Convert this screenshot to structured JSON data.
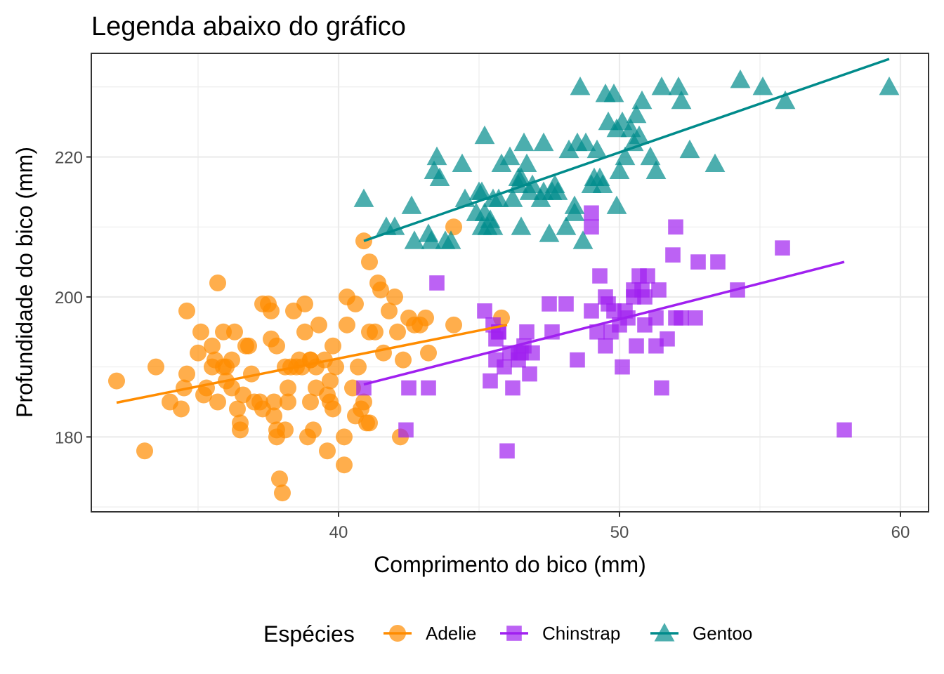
{
  "chart_data": {
    "type": "scatter",
    "title": "Legenda abaixo do gráfico",
    "xlabel": "Comprimento do bico (mm)",
    "ylabel": "Profundidade do bico (mm)",
    "xlim": [
      31.2,
      61.0
    ],
    "ylim": [
      169.3,
      234.8
    ],
    "x_ticks": [
      40,
      50,
      60
    ],
    "y_ticks": [
      180,
      200,
      220
    ],
    "x_minor_ticks": [
      35,
      45,
      55
    ],
    "y_minor_ticks": [
      170,
      190,
      210,
      230
    ],
    "grid": true,
    "legend": {
      "title": "Espécies",
      "position": "bottom"
    },
    "series": [
      {
        "name": "Adelie",
        "color": "#ff8c00",
        "shape": "circle",
        "trend": {
          "x": [
            32.1,
            46.0
          ],
          "y": [
            184.9,
            196.0
          ]
        },
        "points": [
          [
            32.1,
            188
          ],
          [
            33.1,
            178
          ],
          [
            33.5,
            190
          ],
          [
            34.0,
            185
          ],
          [
            34.4,
            184
          ],
          [
            34.5,
            187
          ],
          [
            34.6,
            198
          ],
          [
            34.6,
            189
          ],
          [
            35.0,
            192
          ],
          [
            35.1,
            195
          ],
          [
            35.2,
            186
          ],
          [
            35.3,
            187
          ],
          [
            35.5,
            190
          ],
          [
            35.5,
            193
          ],
          [
            35.6,
            191
          ],
          [
            35.7,
            185
          ],
          [
            35.7,
            202
          ],
          [
            35.9,
            190
          ],
          [
            35.9,
            195
          ],
          [
            36.0,
            188
          ],
          [
            36.0,
            190
          ],
          [
            36.2,
            187
          ],
          [
            36.2,
            191
          ],
          [
            36.3,
            195
          ],
          [
            36.4,
            184
          ],
          [
            36.5,
            182
          ],
          [
            36.5,
            181
          ],
          [
            36.6,
            186
          ],
          [
            36.7,
            193
          ],
          [
            36.8,
            193
          ],
          [
            36.9,
            189
          ],
          [
            37.0,
            185
          ],
          [
            37.2,
            185
          ],
          [
            37.3,
            184
          ],
          [
            37.3,
            199
          ],
          [
            37.5,
            199
          ],
          [
            37.6,
            194
          ],
          [
            37.6,
            198
          ],
          [
            37.7,
            185
          ],
          [
            37.7,
            183
          ],
          [
            37.8,
            180
          ],
          [
            37.8,
            181
          ],
          [
            37.8,
            193
          ],
          [
            37.9,
            174
          ],
          [
            38.0,
            172
          ],
          [
            38.1,
            190
          ],
          [
            38.1,
            181
          ],
          [
            38.2,
            185
          ],
          [
            38.2,
            187
          ],
          [
            38.3,
            190
          ],
          [
            38.4,
            198
          ],
          [
            38.5,
            190
          ],
          [
            38.6,
            191
          ],
          [
            38.7,
            190
          ],
          [
            38.8,
            199
          ],
          [
            38.8,
            195
          ],
          [
            38.9,
            180
          ],
          [
            39.0,
            191
          ],
          [
            39.0,
            185
          ],
          [
            39.1,
            181
          ],
          [
            39.2,
            190
          ],
          [
            39.2,
            187
          ],
          [
            39.3,
            196
          ],
          [
            39.5,
            191
          ],
          [
            39.6,
            178
          ],
          [
            39.6,
            186
          ],
          [
            39.7,
            185
          ],
          [
            39.7,
            188
          ],
          [
            39.8,
            184
          ],
          [
            39.8,
            193
          ],
          [
            39.9,
            190
          ],
          [
            40.2,
            180
          ],
          [
            40.2,
            176
          ],
          [
            40.3,
            200
          ],
          [
            40.3,
            196
          ],
          [
            40.5,
            187
          ],
          [
            40.6,
            183
          ],
          [
            40.6,
            199
          ],
          [
            40.7,
            190
          ],
          [
            40.8,
            184
          ],
          [
            40.9,
            208
          ],
          [
            41.0,
            182
          ],
          [
            41.1,
            182
          ],
          [
            41.1,
            195
          ],
          [
            41.1,
            205
          ],
          [
            41.3,
            195
          ],
          [
            41.4,
            202
          ],
          [
            41.5,
            201
          ],
          [
            41.6,
            192
          ],
          [
            41.8,
            198
          ],
          [
            42.0,
            200
          ],
          [
            42.1,
            195
          ],
          [
            42.2,
            180
          ],
          [
            42.3,
            191
          ],
          [
            42.5,
            197
          ],
          [
            42.7,
            196
          ],
          [
            42.9,
            196
          ],
          [
            43.1,
            197
          ],
          [
            43.2,
            192
          ],
          [
            44.1,
            210
          ],
          [
            44.1,
            196
          ],
          [
            45.8,
            197
          ],
          [
            40.9,
            185
          ],
          [
            39.0,
            191
          ]
        ]
      },
      {
        "name": "Chinstrap",
        "color": "#a020f0",
        "shape": "square",
        "trend": {
          "x": [
            40.9,
            58.0
          ],
          "y": [
            187.5,
            205.0
          ]
        },
        "points": [
          [
            40.9,
            187
          ],
          [
            42.4,
            181
          ],
          [
            42.5,
            187
          ],
          [
            43.2,
            187
          ],
          [
            43.5,
            202
          ],
          [
            45.2,
            198
          ],
          [
            45.4,
            188
          ],
          [
            45.5,
            196
          ],
          [
            45.6,
            191
          ],
          [
            45.6,
            194
          ],
          [
            45.7,
            195
          ],
          [
            45.9,
            190
          ],
          [
            46.0,
            178
          ],
          [
            46.1,
            192
          ],
          [
            46.2,
            187
          ],
          [
            46.4,
            191
          ],
          [
            46.5,
            192
          ],
          [
            46.6,
            193
          ],
          [
            46.7,
            195
          ],
          [
            46.8,
            189
          ],
          [
            46.9,
            192
          ],
          [
            47.5,
            199
          ],
          [
            47.6,
            195
          ],
          [
            48.1,
            199
          ],
          [
            48.5,
            191
          ],
          [
            49.0,
            210
          ],
          [
            49.0,
            212
          ],
          [
            49.2,
            195
          ],
          [
            49.3,
            203
          ],
          [
            49.5,
            193
          ],
          [
            49.6,
            199
          ],
          [
            49.7,
            195
          ],
          [
            49.8,
            198
          ],
          [
            50.0,
            196
          ],
          [
            50.1,
            190
          ],
          [
            50.2,
            198
          ],
          [
            50.3,
            197
          ],
          [
            50.5,
            201
          ],
          [
            50.6,
            193
          ],
          [
            50.7,
            203
          ],
          [
            50.8,
            201
          ],
          [
            50.9,
            196
          ],
          [
            51.0,
            203
          ],
          [
            51.3,
            197
          ],
          [
            51.4,
            201
          ],
          [
            51.5,
            187
          ],
          [
            51.7,
            194
          ],
          [
            51.9,
            206
          ],
          [
            52.0,
            210
          ],
          [
            52.0,
            197
          ],
          [
            52.2,
            197
          ],
          [
            52.7,
            197
          ],
          [
            53.5,
            205
          ],
          [
            52.8,
            205
          ],
          [
            54.2,
            201
          ],
          [
            55.8,
            207
          ],
          [
            58.0,
            181
          ],
          [
            45.7,
            195
          ],
          [
            46.4,
            192
          ],
          [
            49.5,
            200
          ],
          [
            50.9,
            200
          ],
          [
            51.3,
            193
          ],
          [
            50.5,
            200
          ],
          [
            49.0,
            198
          ]
        ]
      },
      {
        "name": "Gentoo",
        "color": "#008b8b",
        "shape": "triangle",
        "trend": {
          "x": [
            40.9,
            59.6
          ],
          "y": [
            208.0,
            234.0
          ]
        },
        "points": [
          [
            40.9,
            214
          ],
          [
            41.7,
            210
          ],
          [
            42.0,
            210
          ],
          [
            42.6,
            213
          ],
          [
            42.7,
            208
          ],
          [
            43.2,
            209
          ],
          [
            43.3,
            208
          ],
          [
            43.4,
            218
          ],
          [
            43.5,
            220
          ],
          [
            43.6,
            217
          ],
          [
            43.8,
            208
          ],
          [
            44.0,
            208
          ],
          [
            44.4,
            219
          ],
          [
            44.5,
            214
          ],
          [
            44.9,
            212
          ],
          [
            45.0,
            215
          ],
          [
            45.1,
            215
          ],
          [
            45.2,
            212
          ],
          [
            45.2,
            223
          ],
          [
            45.3,
            210
          ],
          [
            45.4,
            211
          ],
          [
            45.5,
            210
          ],
          [
            45.5,
            214
          ],
          [
            45.7,
            214
          ],
          [
            45.8,
            219
          ],
          [
            46.1,
            220
          ],
          [
            46.2,
            214
          ],
          [
            46.4,
            216
          ],
          [
            46.5,
            210
          ],
          [
            46.5,
            217
          ],
          [
            46.6,
            222
          ],
          [
            46.7,
            219
          ],
          [
            46.8,
            215
          ],
          [
            46.9,
            216
          ],
          [
            47.2,
            214
          ],
          [
            47.3,
            222
          ],
          [
            47.5,
            209
          ],
          [
            47.6,
            215
          ],
          [
            47.7,
            216
          ],
          [
            47.8,
            215
          ],
          [
            48.1,
            210
          ],
          [
            48.2,
            221
          ],
          [
            48.4,
            213
          ],
          [
            48.5,
            222
          ],
          [
            48.6,
            230
          ],
          [
            48.7,
            208
          ],
          [
            48.8,
            222
          ],
          [
            49.0,
            216
          ],
          [
            49.1,
            217
          ],
          [
            49.2,
            221
          ],
          [
            49.3,
            217
          ],
          [
            49.4,
            216
          ],
          [
            49.5,
            229
          ],
          [
            49.6,
            225
          ],
          [
            49.8,
            229
          ],
          [
            49.9,
            213
          ],
          [
            50.0,
            218
          ],
          [
            50.1,
            225
          ],
          [
            50.2,
            220
          ],
          [
            50.4,
            224
          ],
          [
            50.5,
            222
          ],
          [
            50.6,
            226
          ],
          [
            50.7,
            223
          ],
          [
            50.8,
            228
          ],
          [
            51.1,
            220
          ],
          [
            51.3,
            218
          ],
          [
            51.5,
            230
          ],
          [
            52.1,
            230
          ],
          [
            52.2,
            228
          ],
          [
            52.5,
            221
          ],
          [
            53.4,
            219
          ],
          [
            54.3,
            231
          ],
          [
            55.1,
            230
          ],
          [
            55.9,
            228
          ],
          [
            59.6,
            230
          ],
          [
            46.4,
            217
          ],
          [
            47.3,
            215
          ],
          [
            45.1,
            210
          ],
          [
            48.4,
            212
          ],
          [
            49.9,
            224
          ]
        ]
      }
    ]
  }
}
